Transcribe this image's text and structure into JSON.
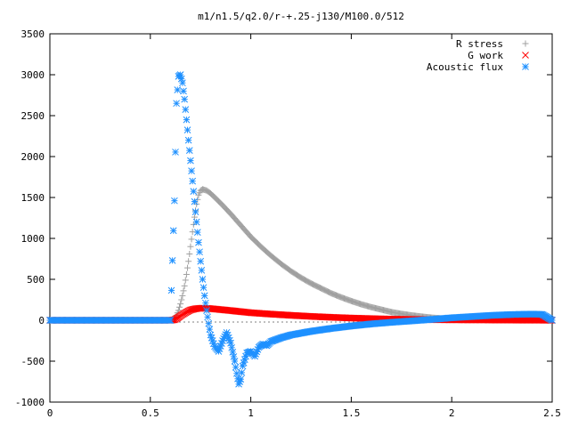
{
  "chart_data": {
    "type": "scatter",
    "title": "m1/n1.5/q2.0/r-+.25-j130/M100.0/512",
    "xlim": [
      0,
      2.5
    ],
    "ylim": [
      -1000,
      3500
    ],
    "x_ticks": [
      0,
      0.5,
      1,
      1.5,
      2,
      2.5
    ],
    "x_tick_labels": [
      "0",
      "0.5",
      "1",
      "1.5",
      "2",
      "2.5"
    ],
    "y_ticks": [
      -1000,
      -500,
      0,
      500,
      1000,
      1500,
      2000,
      2500,
      3000,
      3500
    ],
    "y_tick_labels": [
      "-1000",
      "-500",
      "0",
      "500",
      "1000",
      "1500",
      "2000",
      "2500",
      "3000",
      "3500"
    ],
    "grid": false,
    "legend_position": "top-right",
    "series": [
      {
        "name": "R stress",
        "marker": "plus",
        "color": "#a0a0a0",
        "points": [
          [
            0,
            0
          ],
          [
            0.6,
            0
          ],
          [
            0.62,
            20
          ],
          [
            0.63,
            60
          ],
          [
            0.64,
            120
          ],
          [
            0.65,
            200
          ],
          [
            0.66,
            300
          ],
          [
            0.67,
            420
          ],
          [
            0.68,
            560
          ],
          [
            0.69,
            720
          ],
          [
            0.7,
            900
          ],
          [
            0.71,
            1080
          ],
          [
            0.72,
            1260
          ],
          [
            0.73,
            1420
          ],
          [
            0.74,
            1530
          ],
          [
            0.75,
            1585
          ],
          [
            0.76,
            1600
          ],
          [
            0.78,
            1585
          ],
          [
            0.8,
            1550
          ],
          [
            0.85,
            1430
          ],
          [
            0.9,
            1300
          ],
          [
            0.95,
            1160
          ],
          [
            1.0,
            1020
          ],
          [
            1.05,
            900
          ],
          [
            1.1,
            790
          ],
          [
            1.15,
            690
          ],
          [
            1.2,
            600
          ],
          [
            1.25,
            520
          ],
          [
            1.3,
            450
          ],
          [
            1.35,
            390
          ],
          [
            1.4,
            330
          ],
          [
            1.45,
            280
          ],
          [
            1.5,
            235
          ],
          [
            1.55,
            195
          ],
          [
            1.6,
            160
          ],
          [
            1.65,
            130
          ],
          [
            1.7,
            100
          ],
          [
            1.75,
            78
          ],
          [
            1.8,
            60
          ],
          [
            1.85,
            45
          ],
          [
            1.9,
            32
          ],
          [
            1.95,
            22
          ],
          [
            2.0,
            15
          ],
          [
            2.1,
            8
          ],
          [
            2.2,
            4
          ],
          [
            2.3,
            2
          ],
          [
            2.4,
            1
          ],
          [
            2.5,
            0
          ]
        ]
      },
      {
        "name": "G work",
        "marker": "cross",
        "color": "#ff0000",
        "points": [
          [
            0,
            0
          ],
          [
            0.6,
            0
          ],
          [
            0.62,
            5
          ],
          [
            0.64,
            35
          ],
          [
            0.66,
            70
          ],
          [
            0.68,
            100
          ],
          [
            0.7,
            125
          ],
          [
            0.72,
            138
          ],
          [
            0.74,
            145
          ],
          [
            0.76,
            148
          ],
          [
            0.78,
            146
          ],
          [
            0.8,
            142
          ],
          [
            0.85,
            130
          ],
          [
            0.9,
            118
          ],
          [
            0.95,
            105
          ],
          [
            1.0,
            92
          ],
          [
            1.1,
            75
          ],
          [
            1.2,
            60
          ],
          [
            1.3,
            47
          ],
          [
            1.4,
            36
          ],
          [
            1.5,
            27
          ],
          [
            1.6,
            20
          ],
          [
            1.7,
            14
          ],
          [
            1.8,
            10
          ],
          [
            1.9,
            7
          ],
          [
            2.0,
            5
          ],
          [
            2.1,
            4
          ],
          [
            2.2,
            3
          ],
          [
            2.3,
            2
          ],
          [
            2.4,
            1
          ],
          [
            2.5,
            0
          ]
        ]
      },
      {
        "name": "Acoustic flux",
        "marker": "star",
        "color": "#1e90ff",
        "points": [
          [
            0,
            0
          ],
          [
            0.2,
            0
          ],
          [
            0.4,
            0
          ],
          [
            0.6,
            0
          ],
          [
            0.62,
            1460
          ],
          [
            0.63,
            2650
          ],
          [
            0.64,
            2980
          ],
          [
            0.65,
            3000
          ],
          [
            0.66,
            2900
          ],
          [
            0.67,
            2700
          ],
          [
            0.68,
            2450
          ],
          [
            0.69,
            2200
          ],
          [
            0.7,
            1950
          ],
          [
            0.71,
            1700
          ],
          [
            0.72,
            1450
          ],
          [
            0.73,
            1200
          ],
          [
            0.74,
            950
          ],
          [
            0.75,
            720
          ],
          [
            0.76,
            500
          ],
          [
            0.77,
            300
          ],
          [
            0.78,
            120
          ],
          [
            0.79,
            -40
          ],
          [
            0.8,
            -180
          ],
          [
            0.82,
            -320
          ],
          [
            0.84,
            -380
          ],
          [
            0.86,
            -250
          ],
          [
            0.88,
            -150
          ],
          [
            0.9,
            -280
          ],
          [
            0.92,
            -500
          ],
          [
            0.93,
            -650
          ],
          [
            0.94,
            -780
          ],
          [
            0.95,
            -720
          ],
          [
            0.96,
            -560
          ],
          [
            0.98,
            -400
          ],
          [
            1.0,
            -380
          ],
          [
            1.02,
            -440
          ],
          [
            1.04,
            -330
          ],
          [
            1.06,
            -290
          ],
          [
            1.08,
            -310
          ],
          [
            1.1,
            -260
          ],
          [
            1.15,
            -215
          ],
          [
            1.2,
            -180
          ],
          [
            1.3,
            -135
          ],
          [
            1.4,
            -100
          ],
          [
            1.5,
            -70
          ],
          [
            1.6,
            -45
          ],
          [
            1.7,
            -25
          ],
          [
            1.8,
            -8
          ],
          [
            1.9,
            10
          ],
          [
            2.0,
            30
          ],
          [
            2.1,
            45
          ],
          [
            2.2,
            60
          ],
          [
            2.3,
            70
          ],
          [
            2.4,
            75
          ],
          [
            2.45,
            72
          ],
          [
            2.5,
            0
          ]
        ]
      }
    ]
  }
}
